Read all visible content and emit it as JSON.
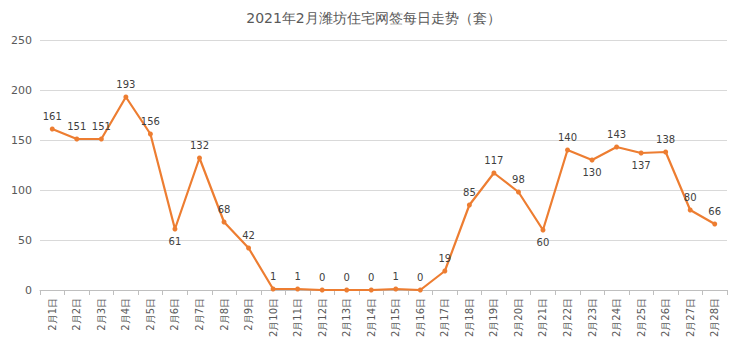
{
  "chart_data": {
    "type": "line",
    "title": "2021年2月潍坊住宅网签每日走势（套）",
    "categories": [
      "2月1日",
      "2月2日",
      "2月3日",
      "2月4日",
      "2月5日",
      "2月6日",
      "2月7日",
      "2月8日",
      "2月9日",
      "2月10日",
      "2月11日",
      "2月12日",
      "2月13日",
      "2月14日",
      "2月15日",
      "2月16日",
      "2月17日",
      "2月18日",
      "2月19日",
      "2月20日",
      "2月21日",
      "2月22日",
      "2月23日",
      "2月24日",
      "2月25日",
      "2月26日",
      "2月27日",
      "2月28日"
    ],
    "values": [
      161,
      151,
      151,
      193,
      156,
      61,
      132,
      68,
      42,
      1,
      1,
      0,
      0,
      0,
      1,
      0,
      19,
      85,
      117,
      98,
      60,
      140,
      130,
      143,
      137,
      138,
      80,
      66
    ],
    "color": "#ED7D31",
    "marker": "circle",
    "ylim": [
      0,
      250
    ],
    "yticks": [
      0,
      50,
      100,
      150,
      200,
      250
    ],
    "grid": true,
    "data_labels": true
  }
}
